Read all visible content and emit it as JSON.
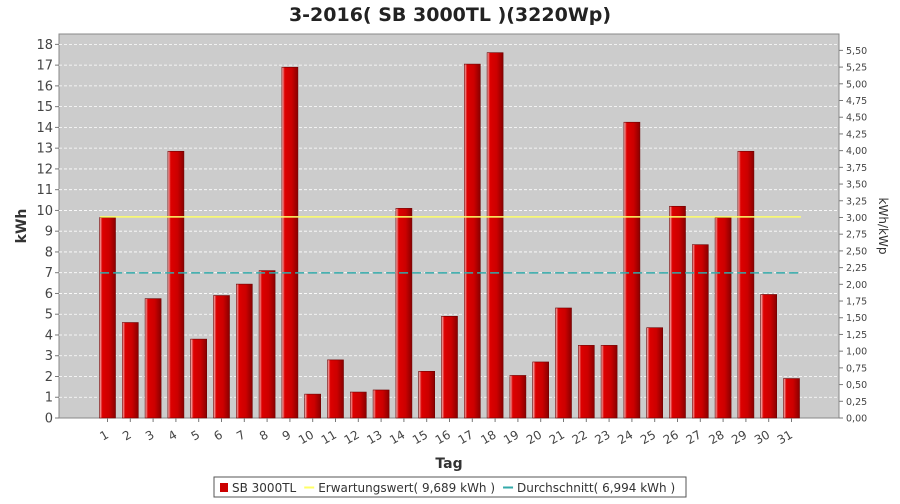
{
  "chart_data": {
    "type": "bar",
    "title": "3-2016( SB 3000TL )(3220Wp)",
    "xlabel": "Tag",
    "ylabel": "kWh",
    "y2label": "kWh/kWp",
    "categories": [
      "1",
      "2",
      "3",
      "4",
      "5",
      "6",
      "7",
      "8",
      "9",
      "10",
      "11",
      "12",
      "13",
      "14",
      "15",
      "16",
      "17",
      "18",
      "19",
      "20",
      "21",
      "22",
      "23",
      "24",
      "25",
      "26",
      "27",
      "28",
      "29",
      "30",
      "31"
    ],
    "series": [
      {
        "name": "SB 3000TL",
        "color": "#cc0000",
        "values": [
          9.65,
          4.6,
          5.75,
          12.85,
          3.8,
          5.9,
          6.45,
          7.1,
          16.9,
          1.15,
          2.8,
          1.25,
          1.35,
          10.1,
          2.25,
          4.9,
          17.05,
          17.6,
          2.05,
          2.7,
          5.3,
          3.5,
          3.5,
          14.25,
          4.35,
          10.2,
          8.35,
          9.65,
          12.85,
          5.95,
          1.9
        ]
      }
    ],
    "lines": [
      {
        "name": "Erwartungswert( 9,689 kWh )",
        "value": 9.689,
        "color": "#ffff66",
        "style": "solid"
      },
      {
        "name": "Durchschnitt( 6,994 kWh )",
        "value": 6.994,
        "color": "#33aaaa",
        "style": "dashed"
      }
    ],
    "ylim": [
      0,
      18.5
    ],
    "yticks": [
      "0",
      "1",
      "2",
      "3",
      "4",
      "5",
      "6",
      "7",
      "8",
      "9",
      "10",
      "11",
      "12",
      "13",
      "14",
      "15",
      "16",
      "17",
      "18"
    ],
    "y2lim": [
      0,
      5.745
    ],
    "y2ticks": [
      "0,00",
      "0,25",
      "0,50",
      "0,75",
      "1,00",
      "1,25",
      "1,50",
      "1,75",
      "2,00",
      "2,25",
      "2,50",
      "2,75",
      "3,00",
      "3,25",
      "3,50",
      "3,75",
      "4,00",
      "4,25",
      "4,50",
      "4,75",
      "5,00",
      "5,25",
      "5,50"
    ],
    "grid": true,
    "legend_position": "bottom",
    "plot_background": "#cccccc"
  }
}
